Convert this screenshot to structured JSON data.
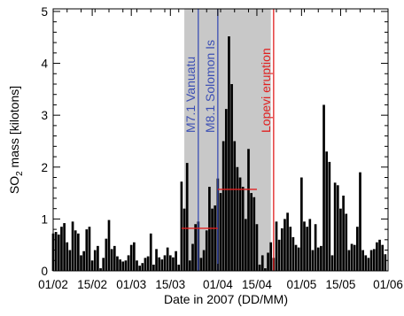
{
  "chart_data": {
    "type": "bar",
    "title": "",
    "xlabel": "Date in 2007 (DD/MM)",
    "ylabel_parts": {
      "pre": "SO",
      "sub": "2",
      "post": " mass [kilotons]"
    },
    "x_domain": [
      "2007-02-01",
      "2007-06-01"
    ],
    "ylim": [
      0,
      5.05
    ],
    "x_ticks": [
      {
        "date": "2007-02-01",
        "label": "01/02"
      },
      {
        "date": "2007-02-15",
        "label": "15/02"
      },
      {
        "date": "2007-03-01",
        "label": "01/03"
      },
      {
        "date": "2007-03-15",
        "label": "15/03"
      },
      {
        "date": "2007-04-01",
        "label": "01/04"
      },
      {
        "date": "2007-04-15",
        "label": "15/04"
      },
      {
        "date": "2007-05-01",
        "label": "01/05"
      },
      {
        "date": "2007-05-15",
        "label": "15/05"
      },
      {
        "date": "2007-06-01",
        "label": "01/06"
      }
    ],
    "y_ticks": [
      {
        "value": 0,
        "label": "0"
      },
      {
        "value": 1,
        "label": "1"
      },
      {
        "value": 2,
        "label": "2"
      },
      {
        "value": 3,
        "label": "3"
      },
      {
        "value": 4,
        "label": "4"
      },
      {
        "value": 5,
        "label": "5"
      }
    ],
    "shaded_period": {
      "start": "2007-03-20",
      "end": "2007-04-20",
      "color": "#c8c8c8"
    },
    "events": [
      {
        "date": "2007-03-25",
        "label": "M7.1 Vanuatu",
        "color": "#3c4fb4"
      },
      {
        "date": "2007-04-01",
        "label": "M8.1 Solomon Is",
        "color": "#3c4fb4"
      },
      {
        "date": "2007-04-21",
        "label": "Lopevi eruption",
        "color": "#e02020"
      }
    ],
    "mean_lines": [
      {
        "start": "2007-03-19",
        "end": "2007-04-01",
        "value": 0.82,
        "color": "#e02020"
      },
      {
        "start": "2007-04-01",
        "end": "2007-04-15",
        "value": 1.57,
        "color": "#e02020"
      }
    ],
    "bar_color": "#000000",
    "x": [
      "2007-02-01",
      "2007-02-02",
      "2007-02-03",
      "2007-02-04",
      "2007-02-05",
      "2007-02-06",
      "2007-02-07",
      "2007-02-08",
      "2007-02-09",
      "2007-02-10",
      "2007-02-11",
      "2007-02-12",
      "2007-02-13",
      "2007-02-14",
      "2007-02-15",
      "2007-02-16",
      "2007-02-17",
      "2007-02-18",
      "2007-02-19",
      "2007-02-20",
      "2007-02-21",
      "2007-02-22",
      "2007-02-23",
      "2007-02-24",
      "2007-02-25",
      "2007-02-26",
      "2007-02-27",
      "2007-02-28",
      "2007-03-01",
      "2007-03-02",
      "2007-03-03",
      "2007-03-04",
      "2007-03-05",
      "2007-03-06",
      "2007-03-07",
      "2007-03-08",
      "2007-03-09",
      "2007-03-10",
      "2007-03-11",
      "2007-03-12",
      "2007-03-13",
      "2007-03-14",
      "2007-03-15",
      "2007-03-16",
      "2007-03-17",
      "2007-03-18",
      "2007-03-19",
      "2007-03-20",
      "2007-03-21",
      "2007-03-22",
      "2007-03-23",
      "2007-03-24",
      "2007-03-25",
      "2007-03-26",
      "2007-03-27",
      "2007-03-28",
      "2007-03-29",
      "2007-03-30",
      "2007-03-31",
      "2007-04-01",
      "2007-04-02",
      "2007-04-03",
      "2007-04-04",
      "2007-04-05",
      "2007-04-06",
      "2007-04-07",
      "2007-04-08",
      "2007-04-09",
      "2007-04-10",
      "2007-04-11",
      "2007-04-12",
      "2007-04-13",
      "2007-04-14",
      "2007-04-15",
      "2007-04-16",
      "2007-04-17",
      "2007-04-18",
      "2007-04-19",
      "2007-04-20",
      "2007-04-21",
      "2007-04-22",
      "2007-04-23",
      "2007-04-24",
      "2007-04-25",
      "2007-04-26",
      "2007-04-27",
      "2007-04-28",
      "2007-04-29",
      "2007-04-30",
      "2007-05-01",
      "2007-05-02",
      "2007-05-03",
      "2007-05-04",
      "2007-05-05",
      "2007-05-06",
      "2007-05-07",
      "2007-05-08",
      "2007-05-09",
      "2007-05-10",
      "2007-05-11",
      "2007-05-12",
      "2007-05-13",
      "2007-05-14",
      "2007-05-15",
      "2007-05-16",
      "2007-05-17",
      "2007-05-18",
      "2007-05-19",
      "2007-05-20",
      "2007-05-21",
      "2007-05-22",
      "2007-05-23",
      "2007-05-24",
      "2007-05-25",
      "2007-05-26",
      "2007-05-27",
      "2007-05-28",
      "2007-05-29",
      "2007-05-30",
      "2007-05-31"
    ],
    "values": [
      0.72,
      0.75,
      0.7,
      0.85,
      0.92,
      0.55,
      0.4,
      0.95,
      0.78,
      0.72,
      0.3,
      0.38,
      0.8,
      0.85,
      0.2,
      0.4,
      0.48,
      0.05,
      0.25,
      0.62,
      0.98,
      0.42,
      0.48,
      0.28,
      0.22,
      0.18,
      0.2,
      0.3,
      0.5,
      0.55,
      0.2,
      0.1,
      0.15,
      0.25,
      0.28,
      0.72,
      0.12,
      0.42,
      0.26,
      0.22,
      0.3,
      0.45,
      0.3,
      0.26,
      0.38,
      0.12,
      1.72,
      1.2,
      2.08,
      0.2,
      0.52,
      0.9,
      0.95,
      0.25,
      0.4,
      0.78,
      1.62,
      1.2,
      1.26,
      1.78,
      1.5,
      2.5,
      3.12,
      4.52,
      3.6,
      2.5,
      2.0,
      1.8,
      1.62,
      1.0,
      2.35,
      1.5,
      1.42,
      0.9,
      0.12,
      0.3,
      0.05,
      0.35,
      0.55,
      0.25,
      0.95,
      0.6,
      0.82,
      1.0,
      1.12,
      0.85,
      0.65,
      0.5,
      0.45,
      1.8,
      0.95,
      0.85,
      1.0,
      0.4,
      0.9,
      0.45,
      0.48,
      3.2,
      2.3,
      2.1,
      0.3,
      1.7,
      1.65,
      1.2,
      1.45,
      1.1,
      0.4,
      0.52,
      0.5,
      0.85,
      1.9,
      0.4,
      0.3,
      0.25,
      0.4,
      0.42,
      0.55,
      0.6,
      0.5,
      0.32
    ]
  }
}
